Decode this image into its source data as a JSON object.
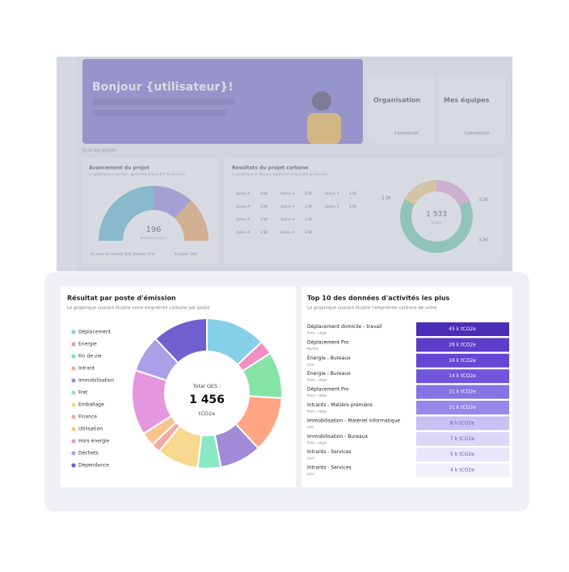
{
  "background_dashboard": {
    "greeting": "Bonjour {utilisateur}!",
    "cards": [
      {
        "title": "Organisation",
        "button": "Commencer"
      },
      {
        "title": "Mes équipes",
        "button": "Commencer"
      }
    ],
    "section_label": "Suivi des projets",
    "progress": {
      "title": "Avancement du projet",
      "subtitle": "Le graphique ci-dessous représente la quantité de données",
      "total": "196",
      "caption": "données à saisir",
      "legend": [
        "En cours de collecte 20%",
        "Validées 11%",
        "À valider 18%"
      ]
    },
    "results": {
      "title": "Résultats du projet carbone",
      "subtitle": "Le graphique ci-dessous représente la quantité de données",
      "options": [
        {
          "label": "Option A",
          "value": "3.5K"
        },
        {
          "label": "Option A",
          "value": "3.5K"
        },
        {
          "label": "Option A",
          "value": "3.5K"
        },
        {
          "label": "Option A",
          "value": "3.5K"
        },
        {
          "label": "Option A",
          "value": "3.5K"
        },
        {
          "label": "Option A",
          "value": "3.5K"
        },
        {
          "label": "Option A",
          "value": "3.5K"
        },
        {
          "label": "Option A",
          "value": "3.5K"
        },
        {
          "label": "Option A",
          "value": "3.5K"
        },
        {
          "label": "Option A",
          "value": "3.5K"
        }
      ],
      "total": "1 533",
      "unit": "tCO2e",
      "labels": [
        "2.3K",
        "3.2K",
        "3.3K"
      ]
    }
  },
  "emission_panel": {
    "title": "Résultat par poste d'émission",
    "subtitle": "Le graphique suivant illustre votre empreinte carbone par poste",
    "categories": [
      "Déplacement",
      "Energie",
      "Fin de vie",
      "Intrant",
      "Immobilisation",
      "Fret",
      "Emballage",
      "Finance",
      "Utilisation",
      "Hors énergie",
      "Déchets",
      "Dépendance"
    ],
    "colors": [
      "#86cfe8",
      "#f28fc0",
      "#86e3a6",
      "#ffa584",
      "#a18ad8",
      "#8be8c6",
      "#f6d98e",
      "#f5a8a2",
      "#f7c38f",
      "#e497dc",
      "#ab9fea",
      "#6f5fcf"
    ],
    "values": [
      13,
      3,
      10,
      12,
      9,
      5,
      9,
      2,
      3,
      14,
      8,
      12
    ],
    "center_label": "Total GES :",
    "total": "1 456",
    "unit": "tCO2e"
  },
  "top10": {
    "title": "Top 10 des données d'activités les plus",
    "subtitle": "Le graphique suivant illustre l'empreinte carbone de votre",
    "rows": [
      {
        "name": "Déplacement domicile - travail",
        "location": "Paris - siège",
        "value": "45 k tCO2e"
      },
      {
        "name": "Déplacement Pro",
        "location": "Nantes",
        "value": "26 k tCO2e"
      },
      {
        "name": "Énergie - Bureaux",
        "location": "Lyon",
        "value": "16 k tCO2e"
      },
      {
        "name": "Énergie - Bureaux",
        "location": "Paris - siège",
        "value": "14 k tCO2e"
      },
      {
        "name": "Déplacement Pro",
        "location": "Paris - siège",
        "value": "11 k tCO2e"
      },
      {
        "name": "Intrants - Matière première",
        "location": "Paris - siège",
        "value": "11 k tCO2e"
      },
      {
        "name": "Immobilisation - Matériel informatique",
        "location": "Lille",
        "value": "8 k tCO2e"
      },
      {
        "name": "Immobilisation - Bureaux",
        "location": "Paris - siège",
        "value": "7 k tCO2e"
      },
      {
        "name": "Intrants - Services",
        "location": "Lyon",
        "value": "5 k tCO2e"
      },
      {
        "name": "Intrants - Services",
        "location": "Lyon",
        "value": "4 k tCO2e"
      }
    ]
  }
}
